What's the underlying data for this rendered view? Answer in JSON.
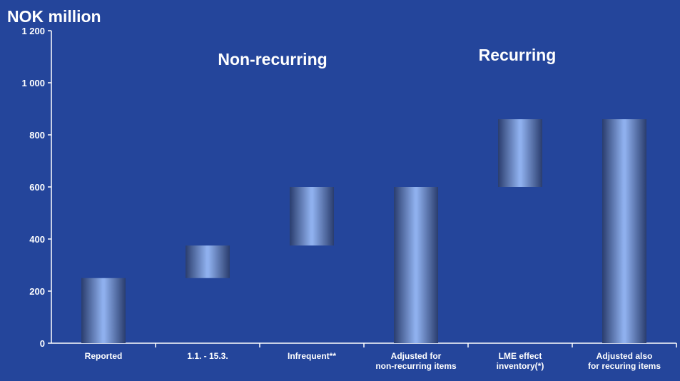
{
  "chart_data": {
    "type": "bar",
    "subtype": "waterfall",
    "title": "NOK million",
    "xlabel": "",
    "ylabel": "",
    "ylim": [
      0,
      1200
    ],
    "yticks": [
      "0",
      "200",
      "400",
      "600",
      "800",
      "1 000",
      "1 200"
    ],
    "ytick_values": [
      0,
      200,
      400,
      600,
      800,
      1000,
      1200
    ],
    "grid": false,
    "legend": "none",
    "categories": [
      [
        "Reported"
      ],
      [
        "1.1. - 15.3."
      ],
      [
        "Infrequent**"
      ],
      [
        "Adjusted for",
        "non-recurring items"
      ],
      [
        "LME effect",
        "inventory(*)"
      ],
      [
        "Adjusted also",
        "for recuring items"
      ]
    ],
    "bars": [
      {
        "from": 0,
        "to": 250
      },
      {
        "from": 250,
        "to": 375
      },
      {
        "from": 375,
        "to": 600
      },
      {
        "from": 0,
        "to": 600
      },
      {
        "from": 600,
        "to": 860
      },
      {
        "from": 0,
        "to": 860
      }
    ],
    "annotations": [
      "Non-recurring",
      "Recurring"
    ]
  },
  "colors": {
    "background": "#24459b",
    "bar_dark": "#2a3d6e",
    "bar_light": "#8fb0ee",
    "text": "#ffffff"
  }
}
